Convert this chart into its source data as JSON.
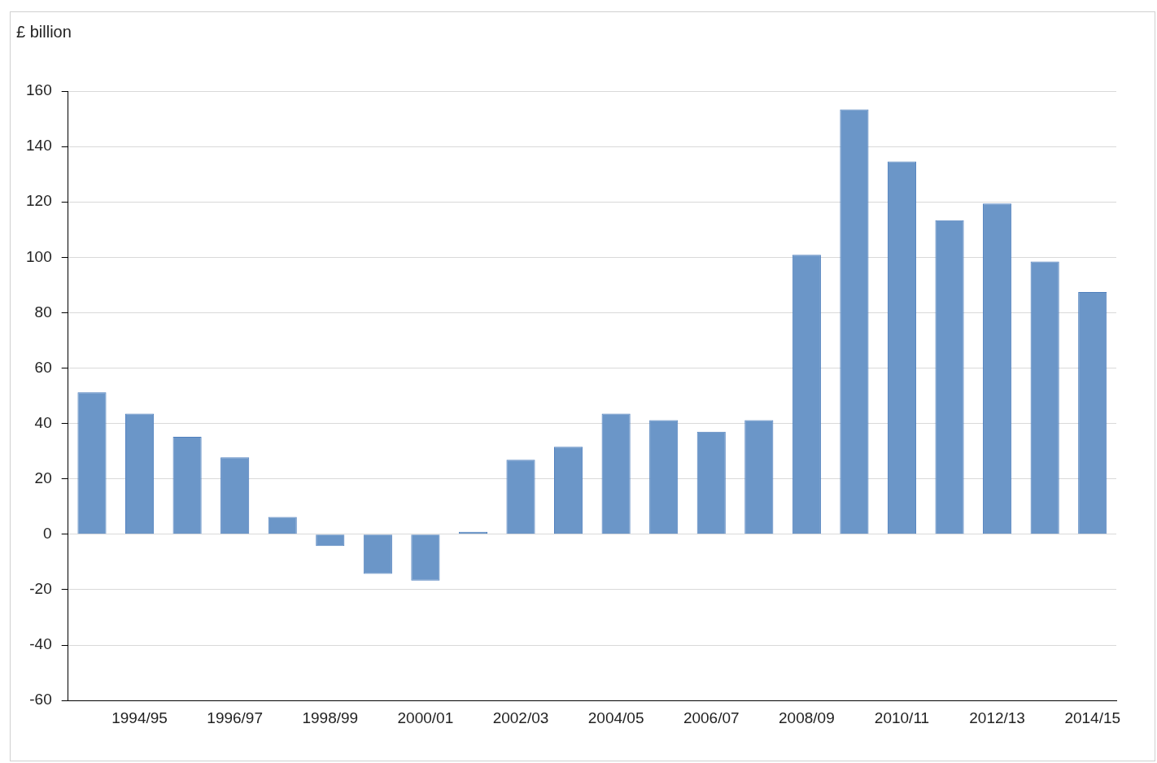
{
  "chart_data": {
    "type": "bar",
    "ylabel": "£ billion",
    "categories": [
      null,
      "1994/95",
      null,
      "1996/97",
      null,
      "1998/99",
      null,
      "2000/01",
      null,
      "2002/03",
      null,
      "2004/05",
      null,
      "2006/07",
      null,
      "2008/09",
      null,
      "2010/11",
      null,
      "2012/13",
      null,
      "2014/15"
    ],
    "values": [
      51.3,
      43.6,
      35.2,
      27.8,
      6.3,
      -4.2,
      -14.3,
      -16.7,
      0.9,
      26.9,
      31.6,
      43.6,
      41.2,
      37.0,
      41.2,
      100.9,
      153.4,
      134.6,
      113.4,
      119.4,
      98.5,
      87.5
    ],
    "color": "#6b96c8",
    "ylim": [
      -60,
      160
    ],
    "yticks": [
      -60,
      -40,
      -20,
      0,
      20,
      40,
      60,
      80,
      100,
      120,
      140,
      160
    ],
    "grid": "y"
  }
}
